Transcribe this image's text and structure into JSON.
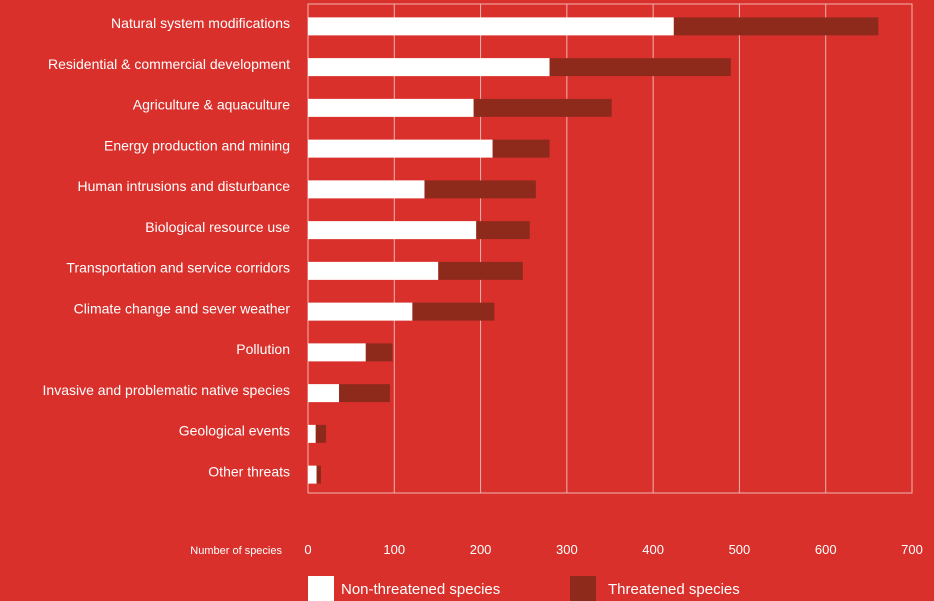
{
  "chart_data": {
    "type": "bar",
    "orientation": "horizontal",
    "stacked": true,
    "categories": [
      "Natural system modifications",
      "Residential & commercial development",
      "Agriculture & aquaculture",
      "Energy production and mining",
      "Human intrusions and disturbance",
      "Biological resource use",
      "Transportation and service corridors",
      "Climate change and sever weather",
      "Pollution",
      "Invasive and problematic native species",
      "Geological events",
      "Other threats"
    ],
    "series": [
      {
        "name": "Non-threatened species",
        "color": "#ffffff",
        "values": [
          424,
          280,
          192,
          214,
          135,
          195,
          151,
          121,
          67,
          36,
          9,
          10
        ]
      },
      {
        "name": "Threatened species",
        "color": "#8e2a1c",
        "values": [
          237,
          210,
          160,
          66,
          129,
          62,
          98,
          95,
          31,
          59,
          12,
          5
        ]
      }
    ],
    "xlabel": "Number of species",
    "xlim": [
      0,
      700
    ],
    "xticks": [
      0,
      100,
      200,
      300,
      400,
      500,
      600,
      700
    ],
    "grid": true,
    "legend_position": "bottom"
  }
}
